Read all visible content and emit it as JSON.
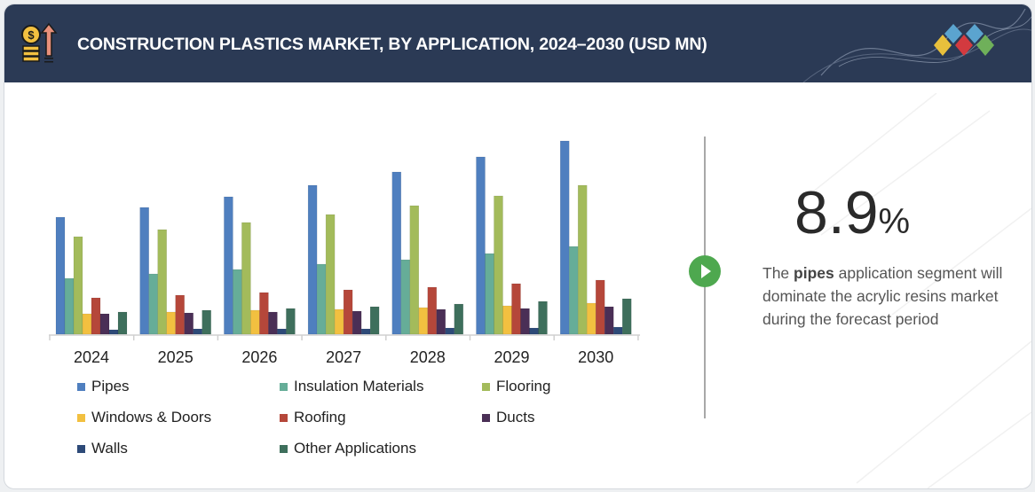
{
  "header": {
    "title": "CONSTRUCTION PLASTICS MARKET, BY APPLICATION, 2024–2030 (USD MN)",
    "icon": "dollar-coins-up-arrow-icon",
    "logo_colors": [
      "#5ba4cf",
      "#5ba4cf",
      "#e8c03c",
      "#d33a3f",
      "#6fb05a"
    ],
    "background_color": "#2b3a55"
  },
  "chart_data": {
    "type": "bar",
    "title": "CONSTRUCTION PLASTICS MARKET, BY APPLICATION, 2024–2030 (USD MN)",
    "xlabel": "",
    "ylabel": "",
    "y_axis_shown": false,
    "grid": false,
    "legend_placement": "bottom",
    "categories": [
      "2024",
      "2025",
      "2026",
      "2027",
      "2028",
      "2029",
      "2030"
    ],
    "series": [
      {
        "name": "Pipes",
        "color": "#4f7fbf",
        "values": [
          132,
          143,
          155,
          168,
          183,
          200,
          218
        ]
      },
      {
        "name": "Insulation Materials",
        "color": "#66ad98",
        "values": [
          63,
          68,
          73,
          79,
          84,
          91,
          99
        ]
      },
      {
        "name": "Flooring",
        "color": "#a3bb5b",
        "values": [
          110,
          118,
          126,
          135,
          145,
          156,
          168
        ]
      },
      {
        "name": "Windows & Doors",
        "color": "#f2c040",
        "values": [
          23,
          25,
          27,
          28,
          30,
          32,
          35
        ]
      },
      {
        "name": "Roofing",
        "color": "#b5473a",
        "values": [
          41,
          44,
          47,
          50,
          53,
          57,
          61
        ]
      },
      {
        "name": "Ducts",
        "color": "#4a2f56",
        "values": [
          23,
          24,
          25,
          26,
          28,
          29,
          31
        ]
      },
      {
        "name": "Walls",
        "color": "#2d4a78",
        "values": [
          5,
          6,
          6,
          6,
          7,
          7,
          8
        ]
      },
      {
        "name": "Other Applications",
        "color": "#3e6f5c",
        "values": [
          25,
          27,
          29,
          31,
          34,
          37,
          40
        ]
      }
    ]
  },
  "highlight": {
    "value": "8.9",
    "unit": "%",
    "icon": "play-circle-icon",
    "accent_color": "#4ea84f",
    "text_before": "The ",
    "text_bold": "pipes",
    "text_after": " application segment will dominate the acrylic resins market during the forecast period"
  }
}
